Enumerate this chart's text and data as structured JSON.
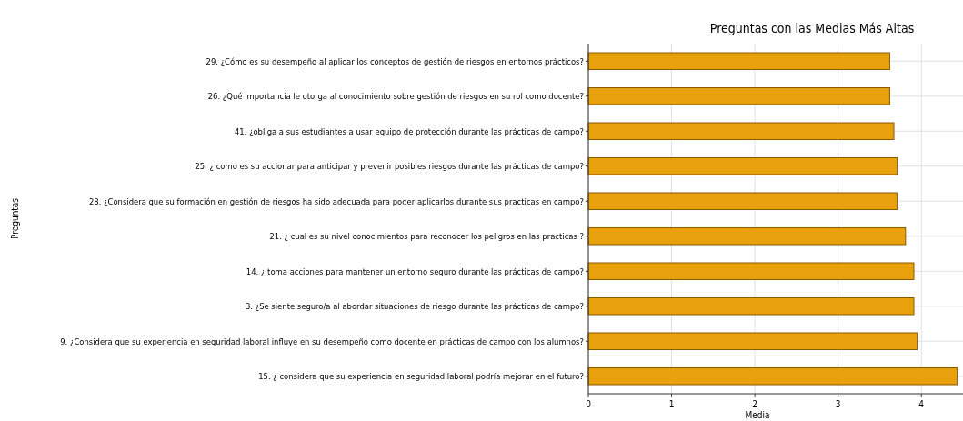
{
  "chart_data": {
    "type": "bar",
    "orientation": "horizontal",
    "title": "Preguntas con las Medias Más Altas",
    "xlabel": "Media",
    "ylabel": "Preguntas",
    "categories": [
      "29. ¿Cómo es su desempeño  al aplicar los conceptos de gestión de riesgos en entornos prácticos?",
      "26. ¿Qué importancia le otorga al conocimiento sobre gestión de riesgos en su rol como docente?",
      "41. ¿obliga a sus estudiantes a usar  equipo de protección durante las prácticas de campo?",
      "25. ¿ como es su  accionar   para anticipar y prevenir posibles riesgos durante las prácticas de campo?",
      "28. ¿Considera que su formación en gestión de riesgos ha sido adecuada para poder aplicarlos durante sus practicas en campo?",
      "21. ¿ cual es su nivel  conocimientos para reconocer los peligros en las practicas ?",
      "14. ¿ toma acciones  para mantener un entorno seguro durante las prácticas de campo?",
      "3. ¿Se siente seguro/a al abordar situaciones de riesgo durante las prácticas de campo?",
      "9. ¿Considera que su experiencia en seguridad laboral influye en su desempeño como docente en prácticas de campo con los alumnos?",
      "15. ¿ considera que su experiencia en seguridad laboral podría mejorar en el futuro?"
    ],
    "values": [
      3.62,
      3.62,
      3.67,
      3.71,
      3.71,
      3.81,
      3.91,
      3.91,
      3.95,
      4.43
    ],
    "color": "#e8a00c",
    "xlim": [
      0,
      4.5
    ],
    "xticks": [
      0,
      1,
      2,
      3,
      4
    ],
    "grid": true
  }
}
